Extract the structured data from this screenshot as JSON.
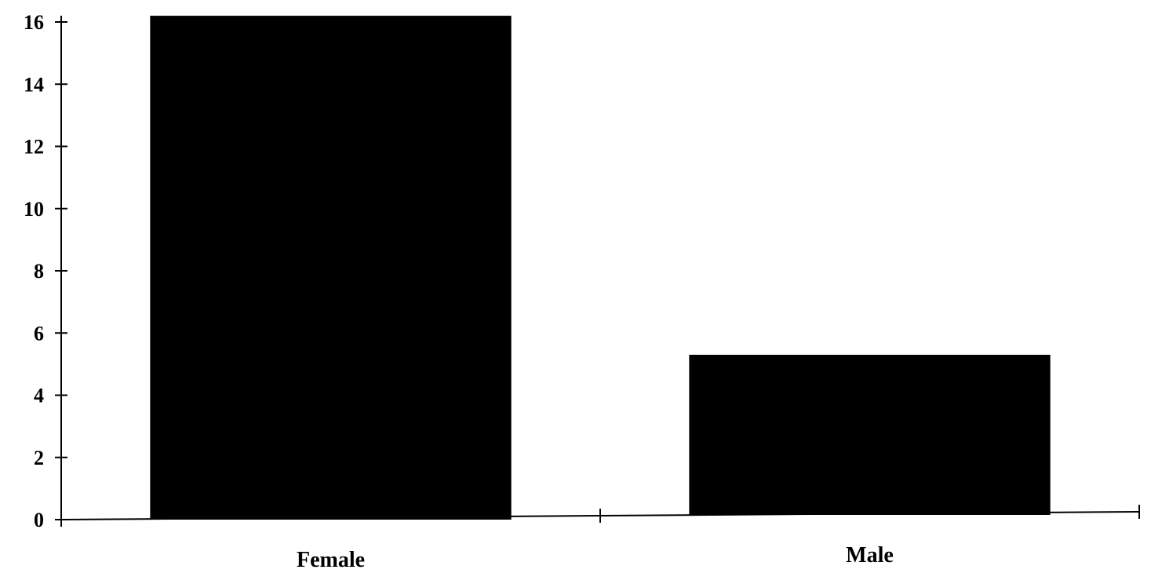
{
  "chart_data": {
    "type": "bar",
    "categories": [
      "Female",
      "Male"
    ],
    "values": [
      16.2,
      5.3
    ],
    "yticks": [
      "0",
      "2",
      "4",
      "6",
      "8",
      "10",
      "12",
      "14",
      "16"
    ],
    "ylim": [
      0,
      16
    ],
    "grid": false,
    "legend": "none",
    "colors": {
      "bar": "#000000",
      "axis": "#000000",
      "background": "#ffffff"
    }
  }
}
